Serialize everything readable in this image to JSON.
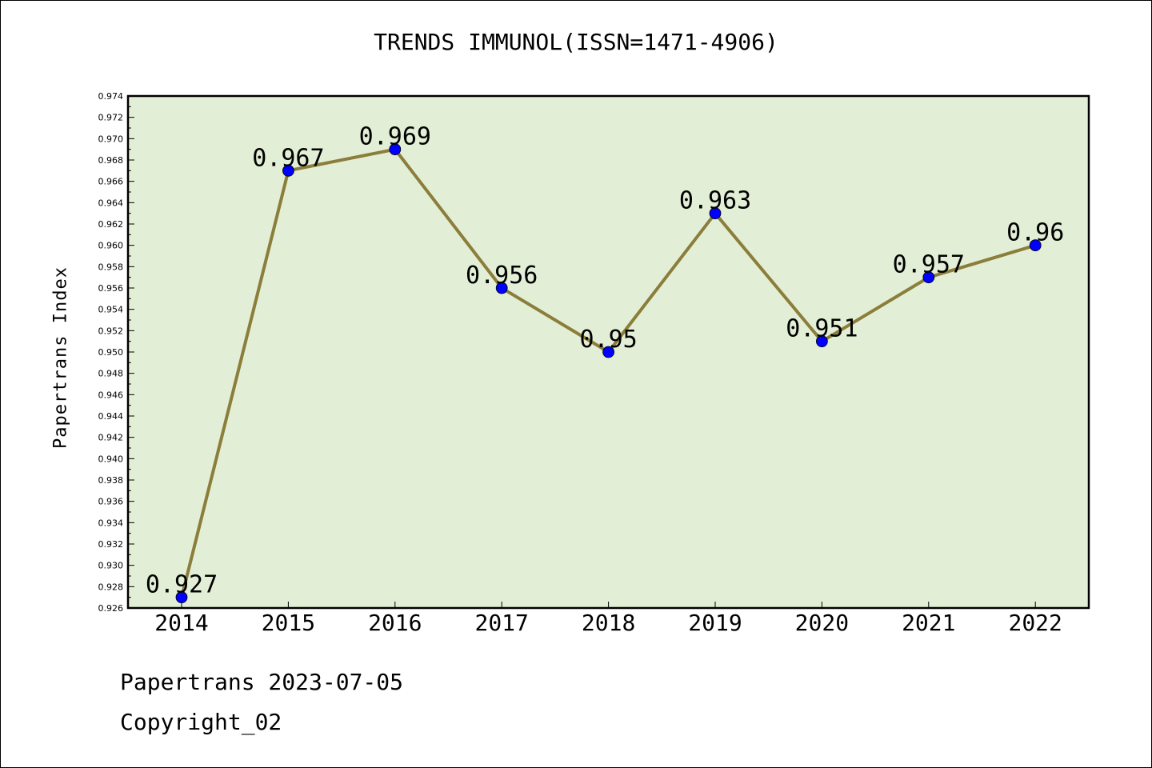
{
  "chart_data": {
    "type": "line",
    "title": "TRENDS IMMUNOL(ISSN=1471-4906)",
    "xlabel": "",
    "ylabel": "Papertrans Index",
    "categories": [
      "2014",
      "2015",
      "2016",
      "2017",
      "2018",
      "2019",
      "2020",
      "2021",
      "2022"
    ],
    "series": [
      {
        "values": [
          0.927,
          0.967,
          0.969,
          0.956,
          0.95,
          0.963,
          0.951,
          0.957,
          0.96
        ],
        "labels": [
          "0.927",
          "0.967",
          "0.969",
          "0.956",
          "0.95",
          "0.963",
          "0.951",
          "0.957",
          "0.96"
        ]
      }
    ],
    "ylim": [
      0.926,
      0.974
    ],
    "yticks": [
      "0.926",
      "0.928",
      "0.930",
      "0.932",
      "0.934",
      "0.936",
      "0.938",
      "0.940",
      "0.942",
      "0.944",
      "0.946",
      "0.948",
      "0.950",
      "0.952",
      "0.954",
      "0.956",
      "0.958",
      "0.960",
      "0.962",
      "0.964",
      "0.966",
      "0.968",
      "0.970",
      "0.972",
      "0.974"
    ],
    "grid": false,
    "colors": {
      "plot_bg": "#e2efd6",
      "line": "#8b7d3a",
      "marker": "#0000ff"
    }
  },
  "footer": {
    "source": "Papertrans 2023-07-05",
    "copyright": "Copyright_02"
  }
}
